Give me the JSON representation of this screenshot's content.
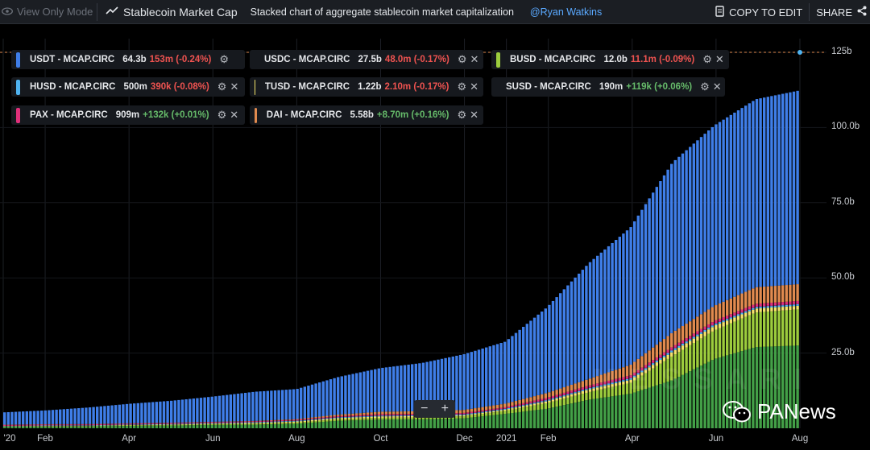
{
  "header": {
    "view_only": "View Only Mode",
    "title": "Stablecoin Market Cap",
    "description": "Stacked chart of aggregate stablecoin market capitalization",
    "author": "@Ryan Watkins",
    "copy_label": "COPY TO EDIT",
    "share_label": "SHARE"
  },
  "legend": [
    {
      "name": "USDT - MCAP.CIRC",
      "value": "64.3b",
      "change": "153m (-0.24%)",
      "color": "#3f7ee8",
      "change_color": "#ef5350",
      "closable": false
    },
    {
      "name": "USDC - MCAP.CIRC",
      "value": "27.5b",
      "change": "48.0m (-0.17%)",
      "color": "#43a047",
      "change_color": "#ef5350",
      "closable": true
    },
    {
      "name": "BUSD - MCAP.CIRC",
      "value": "12.0b",
      "change": "11.1m (-0.09%)",
      "color": "#9ccc3d",
      "change_color": "#ef5350",
      "closable": true
    },
    {
      "name": "HUSD - MCAP.CIRC",
      "value": "500m",
      "change": "390k (-0.08%)",
      "color": "#4fb3f0",
      "change_color": "#ef5350",
      "closable": true
    },
    {
      "name": "TUSD - MCAP.CIRC",
      "value": "1.22b",
      "change": "2.10m (-0.17%)",
      "color": "#f3e26b",
      "change_color": "#ef5350",
      "closable": true
    },
    {
      "name": "SUSD - MCAP.CIRC",
      "value": "190m",
      "change": "+119k (+0.06%)",
      "color": "#a93a9a",
      "change_color": "#66bb6a",
      "closable": true
    },
    {
      "name": "PAX - MCAP.CIRC",
      "value": "909m",
      "change": "+132k (+0.01%)",
      "color": "#e0307a",
      "change_color": "#66bb6a",
      "closable": true
    },
    {
      "name": "DAI - MCAP.CIRC",
      "value": "5.58b",
      "change": "+8.70m (+0.16%)",
      "color": "#e08a4f",
      "change_color": "#66bb6a",
      "closable": true
    }
  ],
  "watermark": "MESSARI",
  "badge": "PANews",
  "chart_data": {
    "type": "area",
    "stacked": true,
    "x": [
      "2020-01",
      "2020-02",
      "2020-03",
      "2020-04",
      "2020-05",
      "2020-06",
      "2020-07",
      "2020-08",
      "2020-09",
      "2020-10",
      "2020-11",
      "2020-12",
      "2021-01",
      "2021-02",
      "2021-03",
      "2021-04",
      "2021-05",
      "2021-06",
      "2021-07",
      "2021-08"
    ],
    "x_tick_labels": [
      "'20",
      "Feb",
      "Apr",
      "Jun",
      "Aug",
      "Oct",
      "Dec",
      "2021",
      "Feb",
      "Apr",
      "Jun",
      "Aug"
    ],
    "y_tick_labels": [
      "125b",
      "100.0b",
      "75.0b",
      "50.0b",
      "25.0b"
    ],
    "ylim": [
      0,
      125
    ],
    "unit": "b",
    "series": [
      {
        "name": "USDC - MCAP.CIRC",
        "values": [
          0.5,
          0.6,
          0.6,
          0.8,
          0.9,
          1.1,
          1.2,
          1.5,
          2.5,
          2.9,
          3.0,
          3.3,
          4.8,
          6.5,
          9.5,
          11.5,
          16,
          23,
          27,
          27.5
        ]
      },
      {
        "name": "BUSD - MCAP.CIRC",
        "values": [
          0.1,
          0.1,
          0.15,
          0.2,
          0.2,
          0.25,
          0.3,
          0.4,
          0.5,
          0.6,
          0.6,
          0.7,
          1.0,
          1.9,
          2.5,
          3.6,
          8.0,
          9.5,
          11.5,
          12.0
        ]
      },
      {
        "name": "TUSD - MCAP.CIRC",
        "values": [
          0.1,
          0.1,
          0.1,
          0.1,
          0.15,
          0.2,
          0.3,
          0.35,
          0.4,
          0.45,
          0.45,
          0.3,
          0.4,
          0.6,
          0.9,
          1.0,
          1.4,
          1.5,
          1.3,
          1.22
        ]
      },
      {
        "name": "HUSD - MCAP.CIRC",
        "values": [
          0.1,
          0.15,
          0.15,
          0.15,
          0.2,
          0.2,
          0.25,
          0.25,
          0.25,
          0.25,
          0.25,
          0.3,
          0.3,
          0.35,
          0.4,
          0.5,
          0.6,
          0.55,
          0.5,
          0.5
        ]
      },
      {
        "name": "SUSD - MCAP.CIRC",
        "values": [
          0.0,
          0.0,
          0.0,
          0.0,
          0.0,
          0.0,
          0.0,
          0.05,
          0.1,
          0.1,
          0.1,
          0.1,
          0.1,
          0.2,
          0.2,
          0.2,
          0.2,
          0.2,
          0.2,
          0.19
        ]
      },
      {
        "name": "PAX - MCAP.CIRC",
        "values": [
          0.3,
          0.3,
          0.3,
          0.3,
          0.3,
          0.3,
          0.3,
          0.3,
          0.3,
          0.4,
          0.4,
          0.4,
          0.4,
          0.6,
          0.7,
          0.8,
          0.9,
          0.9,
          0.9,
          0.909
        ]
      },
      {
        "name": "DAI - MCAP.CIRC",
        "values": [
          0.1,
          0.1,
          0.1,
          0.1,
          0.1,
          0.1,
          0.1,
          0.2,
          0.5,
          0.8,
          0.9,
          1.0,
          1.2,
          1.6,
          2.2,
          3.5,
          4.7,
          5.0,
          5.5,
          5.58
        ]
      },
      {
        "name": "USDT - MCAP.CIRC",
        "values": [
          4.1,
          4.6,
          5.5,
          6.5,
          7.3,
          8.4,
          9.7,
          10.0,
          12.5,
          14.5,
          16.0,
          18.5,
          20.6,
          28.5,
          38.5,
          45.7,
          56.5,
          60.0,
          62.5,
          64.3
        ]
      }
    ]
  }
}
